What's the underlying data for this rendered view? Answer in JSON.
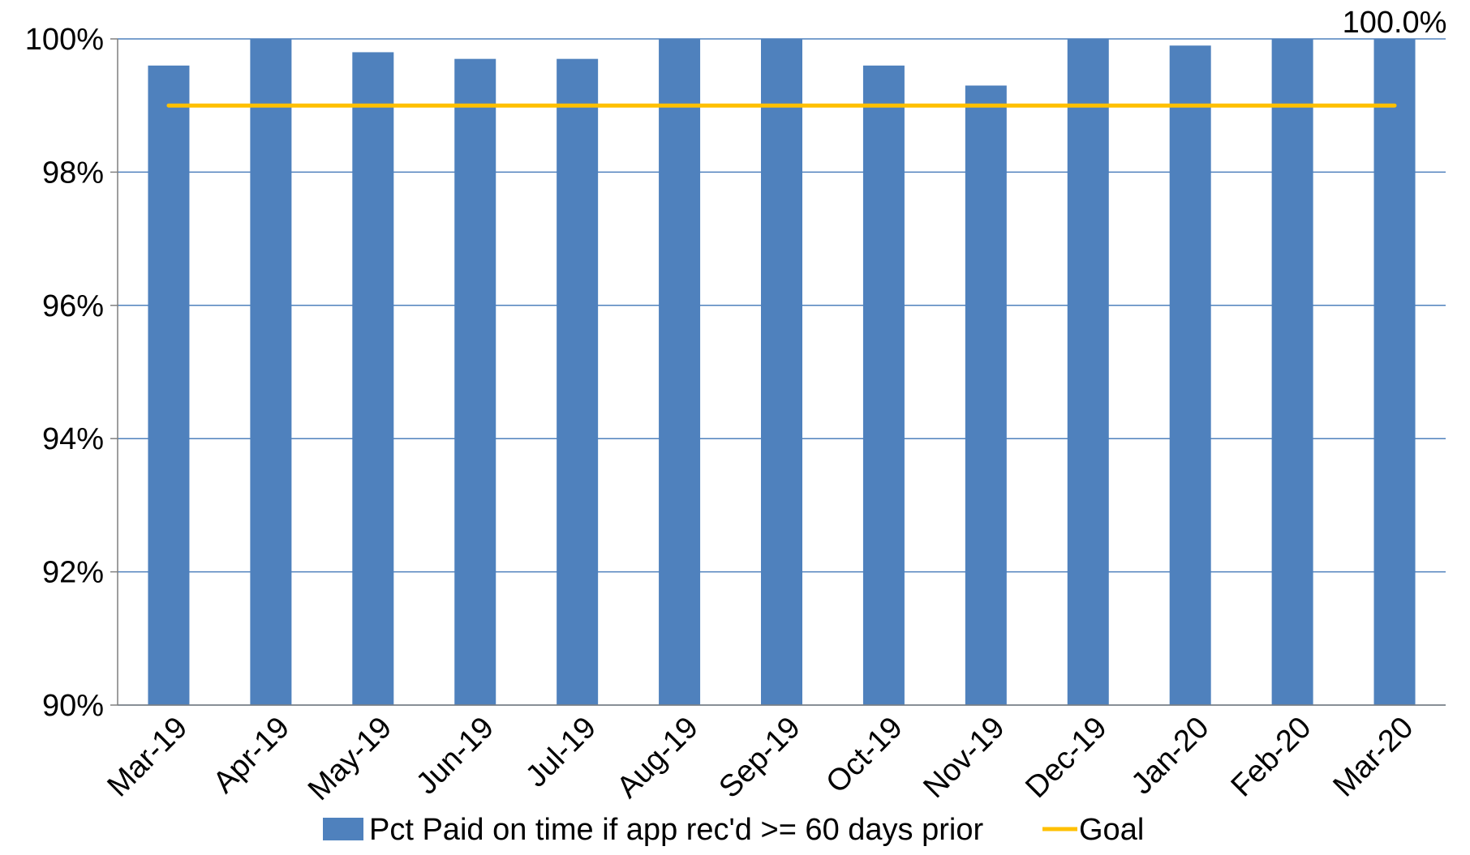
{
  "chart_data": {
    "type": "bar",
    "categories": [
      "Mar-19",
      "Apr-19",
      "May-19",
      "Jun-19",
      "Jul-19",
      "Aug-19",
      "Sep-19",
      "Oct-19",
      "Nov-19",
      "Dec-19",
      "Jan-20",
      "Feb-20",
      "Mar-20"
    ],
    "series": [
      {
        "name": "Pct Paid on time if app rec'd >= 60 days prior",
        "kind": "bar",
        "color": "#4F81BD",
        "values": [
          99.6,
          100.0,
          99.8,
          99.7,
          99.7,
          100.0,
          100.0,
          99.6,
          99.3,
          100.0,
          99.9,
          100.0,
          100.0
        ]
      },
      {
        "name": "Goal",
        "kind": "line",
        "color": "#FFC000",
        "values": [
          99,
          99,
          99,
          99,
          99,
          99,
          99,
          99,
          99,
          99,
          99,
          99,
          99
        ]
      }
    ],
    "ylim": [
      90,
      100
    ],
    "yticks": [
      "90%",
      "92%",
      "94%",
      "96%",
      "98%",
      "100%"
    ],
    "ytick_values": [
      90,
      92,
      94,
      96,
      98,
      100
    ],
    "data_labels": [
      {
        "category": "Mar-20",
        "text": "100.0%"
      }
    ],
    "grid": true,
    "gridline_color": "#4F81BD",
    "legend_position": "bottom",
    "title": "",
    "xlabel": "",
    "ylabel": ""
  }
}
